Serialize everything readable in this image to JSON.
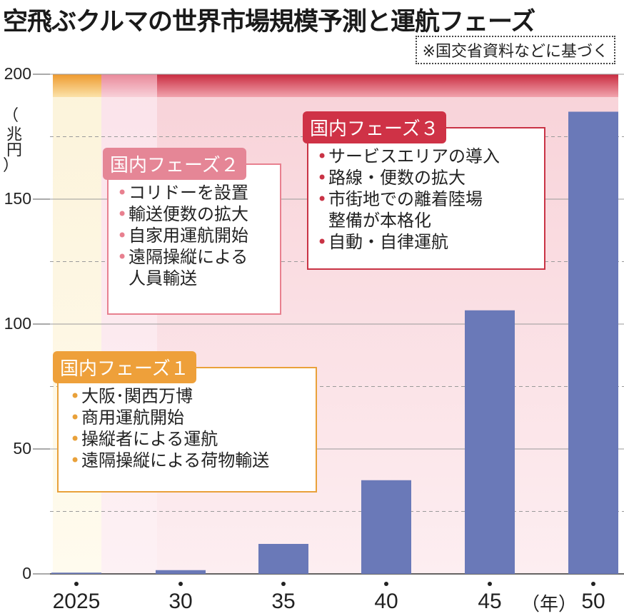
{
  "title": "空飛ぶクルマの世界市場規模予測と運航フェーズ",
  "source": "※国交省資料などに基づく",
  "chart_data": {
    "type": "bar",
    "categories": [
      "2025",
      "30",
      "35",
      "40",
      "45",
      "50"
    ],
    "values": [
      0.5,
      1.5,
      12,
      37.5,
      105.5,
      185
    ],
    "ylabel": "兆円",
    "xunit": "（年）",
    "ylim": [
      0,
      200
    ],
    "yticks": [
      "0",
      "50",
      "100",
      "150",
      "200"
    ],
    "grid": true,
    "bar_color": "#6a79b8",
    "phases": [
      {
        "label": "国内フェーズ１",
        "color": "#eea03a",
        "items": [
          "大阪･関西万博",
          "商用運航開始",
          "操縦者による運航",
          "遠隔操縦による荷物輸送"
        ]
      },
      {
        "label": "国内フェーズ２",
        "color": "#e58696",
        "items": [
          "コリドーを設置",
          "輸送便数の拡大",
          "自家用運航開始",
          "遠隔操縦による",
          "人員輸送"
        ]
      },
      {
        "label": "国内フェーズ３",
        "color": "#cf3246",
        "items": [
          "サービスエリアの導入",
          "路線・便数の拡大",
          "市街地での離着陸場",
          "整備が本格化",
          "自動・自律運航"
        ]
      }
    ]
  }
}
